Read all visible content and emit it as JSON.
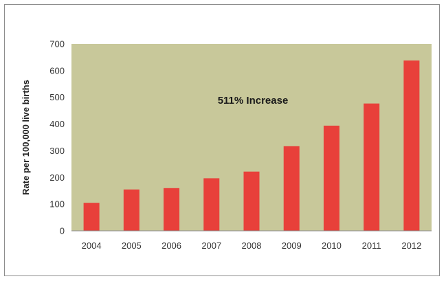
{
  "chart_data": {
    "type": "bar",
    "categories": [
      "2004",
      "2005",
      "2006",
      "2007",
      "2008",
      "2009",
      "2010",
      "2011",
      "2012"
    ],
    "values": [
      105,
      155,
      160,
      197,
      222,
      317,
      394,
      477,
      638
    ],
    "title": "",
    "xlabel": "",
    "ylabel": "Rate per 100,000 live births",
    "ylim": [
      0,
      700
    ],
    "yticks": [
      0,
      100,
      200,
      300,
      400,
      500,
      600,
      700
    ],
    "annotation": "511% Increase",
    "grid": false,
    "legend": "none",
    "colors": {
      "bar": "#e8403a",
      "plot_background": "#c8c89a",
      "axis": "#8c8c8c"
    }
  }
}
